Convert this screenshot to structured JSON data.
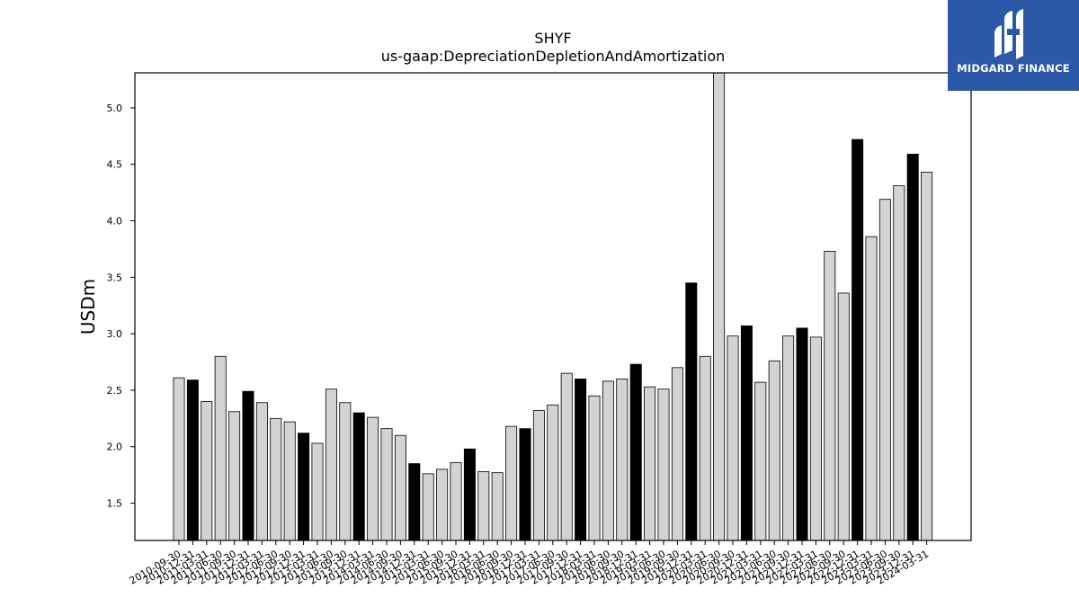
{
  "chart_data": {
    "type": "bar",
    "title": "SHYF",
    "subtitle": "us-gaap:DepreciationDepletionAndAmortization",
    "xlabel": "",
    "ylabel": "USDm",
    "ylim": [
      1.17,
      5.31
    ],
    "yticks": [
      "1.5",
      "2.0",
      "2.5",
      "3.0",
      "3.5",
      "4.0",
      "4.5",
      "5.0"
    ],
    "grid": false,
    "categories": [
      "2010-09-30",
      "2010-12-31",
      "2011-03-31",
      "2011-06-30",
      "2011-09-30",
      "2011-12-31",
      "2012-03-31",
      "2012-06-30",
      "2012-09-30",
      "2012-12-31",
      "2013-03-31",
      "2013-06-30",
      "2013-09-30",
      "2013-12-31",
      "2014-03-31",
      "2014-06-30",
      "2014-09-30",
      "2014-12-31",
      "2015-03-31",
      "2015-06-30",
      "2015-09-30",
      "2015-12-31",
      "2016-03-31",
      "2016-06-30",
      "2016-09-30",
      "2016-12-31",
      "2017-03-31",
      "2017-06-30",
      "2017-09-30",
      "2017-12-31",
      "2018-03-31",
      "2018-06-30",
      "2018-09-30",
      "2018-12-31",
      "2019-03-31",
      "2019-06-30",
      "2019-09-30",
      "2019-12-31",
      "2020-03-31",
      "2020-06-30",
      "2020-09-30",
      "2020-12-31",
      "2021-03-31",
      "2021-06-30",
      "2021-09-30",
      "2021-12-31",
      "2022-03-31",
      "2022-06-30",
      "2022-09-30",
      "2022-12-31",
      "2023-03-31",
      "2023-06-30",
      "2023-09-30",
      "2023-12-31",
      "2024-03-31"
    ],
    "values": [
      2.61,
      2.59,
      2.4,
      2.8,
      2.31,
      2.49,
      2.39,
      2.25,
      2.22,
      2.12,
      2.03,
      2.51,
      2.39,
      2.3,
      2.26,
      2.16,
      2.1,
      1.85,
      1.76,
      1.8,
      1.86,
      1.98,
      1.78,
      1.77,
      2.18,
      2.16,
      2.32,
      2.37,
      2.65,
      2.6,
      2.45,
      2.58,
      2.6,
      2.73,
      2.53,
      2.51,
      2.7,
      3.45,
      2.8,
      5.35,
      2.98,
      3.07,
      2.57,
      2.76,
      2.98,
      3.05,
      2.97,
      3.73,
      3.36,
      4.72,
      3.86,
      4.19,
      4.31,
      4.59,
      4.43
    ],
    "highlight": [
      false,
      true,
      false,
      false,
      false,
      true,
      false,
      false,
      false,
      true,
      false,
      false,
      false,
      true,
      false,
      false,
      false,
      true,
      false,
      false,
      false,
      true,
      false,
      false,
      false,
      true,
      false,
      false,
      false,
      true,
      false,
      false,
      false,
      true,
      false,
      false,
      false,
      true,
      false,
      false,
      false,
      true,
      false,
      false,
      false,
      true,
      false,
      false,
      false,
      true,
      false,
      false,
      false,
      true,
      false
    ],
    "colors": {
      "bar_fill": "#d3d3d3",
      "highlight_fill": "#000000",
      "edge": "#000000"
    }
  },
  "logo": {
    "text": "MIDGARD FINANCE",
    "background": "#2b58a8"
  }
}
